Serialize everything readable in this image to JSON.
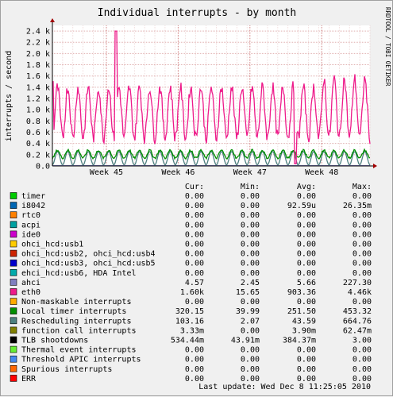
{
  "title": "Individual interrupts - by month",
  "watermark": "RRDTOOL / TOBI OETIKER",
  "legend_headers": {
    "cur": "Cur:",
    "min": "Min:",
    "avg": "Avg:",
    "max": "Max:"
  },
  "legend": [
    {
      "name": "timer",
      "color": "#00cc00",
      "cur": "0.00",
      "min": "0.00",
      "avg": "0.00",
      "max": "0.00"
    },
    {
      "name": "i8042",
      "color": "#0066b3",
      "cur": "0.00",
      "min": "0.00",
      "avg": "92.59u",
      "max": "26.35m"
    },
    {
      "name": "rtc0",
      "color": "#ff8000",
      "cur": "0.00",
      "min": "0.00",
      "avg": "0.00",
      "max": "0.00"
    },
    {
      "name": "acpi",
      "color": "#00a0a0",
      "cur": "0.00",
      "min": "0.00",
      "avg": "0.00",
      "max": "0.00"
    },
    {
      "name": "ide0",
      "color": "#cc00cc",
      "cur": "0.00",
      "min": "0.00",
      "avg": "0.00",
      "max": "0.00"
    },
    {
      "name": "ohci_hcd:usb1",
      "color": "#ffcc00",
      "cur": "0.00",
      "min": "0.00",
      "avg": "0.00",
      "max": "0.00"
    },
    {
      "name": "ohci_hcd:usb2, ohci_hcd:usb4",
      "color": "#cc2200",
      "cur": "0.00",
      "min": "0.00",
      "avg": "0.00",
      "max": "0.00"
    },
    {
      "name": "ohci_hcd:usb3, ohci_hcd:usb5",
      "color": "#0000cc",
      "cur": "0.00",
      "min": "0.00",
      "avg": "0.00",
      "max": "0.00"
    },
    {
      "name": "ehci_hcd:usb6, HDA Intel",
      "color": "#00aaaa",
      "cur": "0.00",
      "min": "0.00",
      "avg": "0.00",
      "max": "0.00"
    },
    {
      "name": "ahci",
      "color": "#8080c0",
      "cur": "4.57",
      "min": "2.45",
      "avg": "5.66",
      "max": "227.30"
    },
    {
      "name": "eth0",
      "color": "#ee1a8a",
      "cur": "1.60k",
      "min": "15.65",
      "avg": "903.36",
      "max": "4.46k"
    },
    {
      "name": "Non-maskable interrupts",
      "color": "#ffaa00",
      "cur": "0.00",
      "min": "0.00",
      "avg": "0.00",
      "max": "0.00"
    },
    {
      "name": "Local timer interrupts",
      "color": "#008f00",
      "cur": "320.15",
      "min": "39.99",
      "avg": "251.50",
      "max": "453.32"
    },
    {
      "name": "Rescheduling interrupts",
      "color": "#4d8080",
      "cur": "103.16",
      "min": "2.07",
      "avg": "43.59",
      "max": "664.76"
    },
    {
      "name": "function call interrupts",
      "color": "#808000",
      "cur": "3.33m",
      "min": "0.00",
      "avg": "3.90m",
      "max": "62.47m"
    },
    {
      "name": "TLB shootdowns",
      "color": "#000000",
      "cur": "534.44m",
      "min": "43.91m",
      "avg": "384.37m",
      "max": "3.00"
    },
    {
      "name": "Thermal event interrupts",
      "color": "#66ee33",
      "cur": "0.00",
      "min": "0.00",
      "avg": "0.00",
      "max": "0.00"
    },
    {
      "name": "Threshold APIC interrupts",
      "color": "#4488ee",
      "cur": "0.00",
      "min": "0.00",
      "avg": "0.00",
      "max": "0.00"
    },
    {
      "name": "Spurious interrupts",
      "color": "#ff6600",
      "cur": "0.00",
      "min": "0.00",
      "avg": "0.00",
      "max": "0.00"
    },
    {
      "name": "ERR",
      "color": "#ff0000",
      "cur": "0.00",
      "min": "0.00",
      "avg": "0.00",
      "max": "0.00"
    }
  ],
  "last_update": "Last update: Wed Dec  8 11:25:05 2010",
  "chart_data": {
    "type": "line",
    "title": "Individual interrupts - by month",
    "ylabel": "interrupts / second",
    "ylim": [
      0,
      2500
    ],
    "yticks": [
      0,
      200,
      400,
      600,
      800,
      1000,
      1200,
      1400,
      1600,
      1800,
      2000,
      2200,
      2400
    ],
    "ytick_labels": [
      "0.0",
      "0.2 k",
      "0.4 k",
      "0.6 k",
      "0.8 k",
      "1.0 k",
      "1.2 k",
      "1.4 k",
      "1.6 k",
      "1.8 k",
      "2.0 k",
      "2.2 k",
      "2.4 k"
    ],
    "x_labels": [
      {
        "label": "Week 45",
        "at": 0.17
      },
      {
        "label": "Week 46",
        "at": 0.396
      },
      {
        "label": "Week 47",
        "at": 0.622
      },
      {
        "label": "Week 48",
        "at": 0.848
      }
    ],
    "grid": true,
    "series": [
      {
        "name": "eth0",
        "color": "#ee1a8a",
        "min": 15.65,
        "avg": 903.36,
        "max": 4460,
        "cur": 1600,
        "profile": {
          "peak": 2400,
          "peak_at": 0.2,
          "dip_at": 0.765,
          "daily_low": 500,
          "daily_high": 1400
        }
      },
      {
        "name": "Local timer interrupts",
        "color": "#008f00",
        "min": 39.99,
        "avg": 251.5,
        "max": 453.32,
        "cur": 320.15
      },
      {
        "name": "Rescheduling interrupts",
        "color": "#4d8080",
        "min": 2.07,
        "avg": 43.59,
        "max": 664.76,
        "cur": 103.16
      },
      {
        "name": "ahci",
        "color": "#8080c0",
        "min": 2.45,
        "avg": 5.66,
        "max": 227.3,
        "cur": 4.57
      }
    ]
  }
}
